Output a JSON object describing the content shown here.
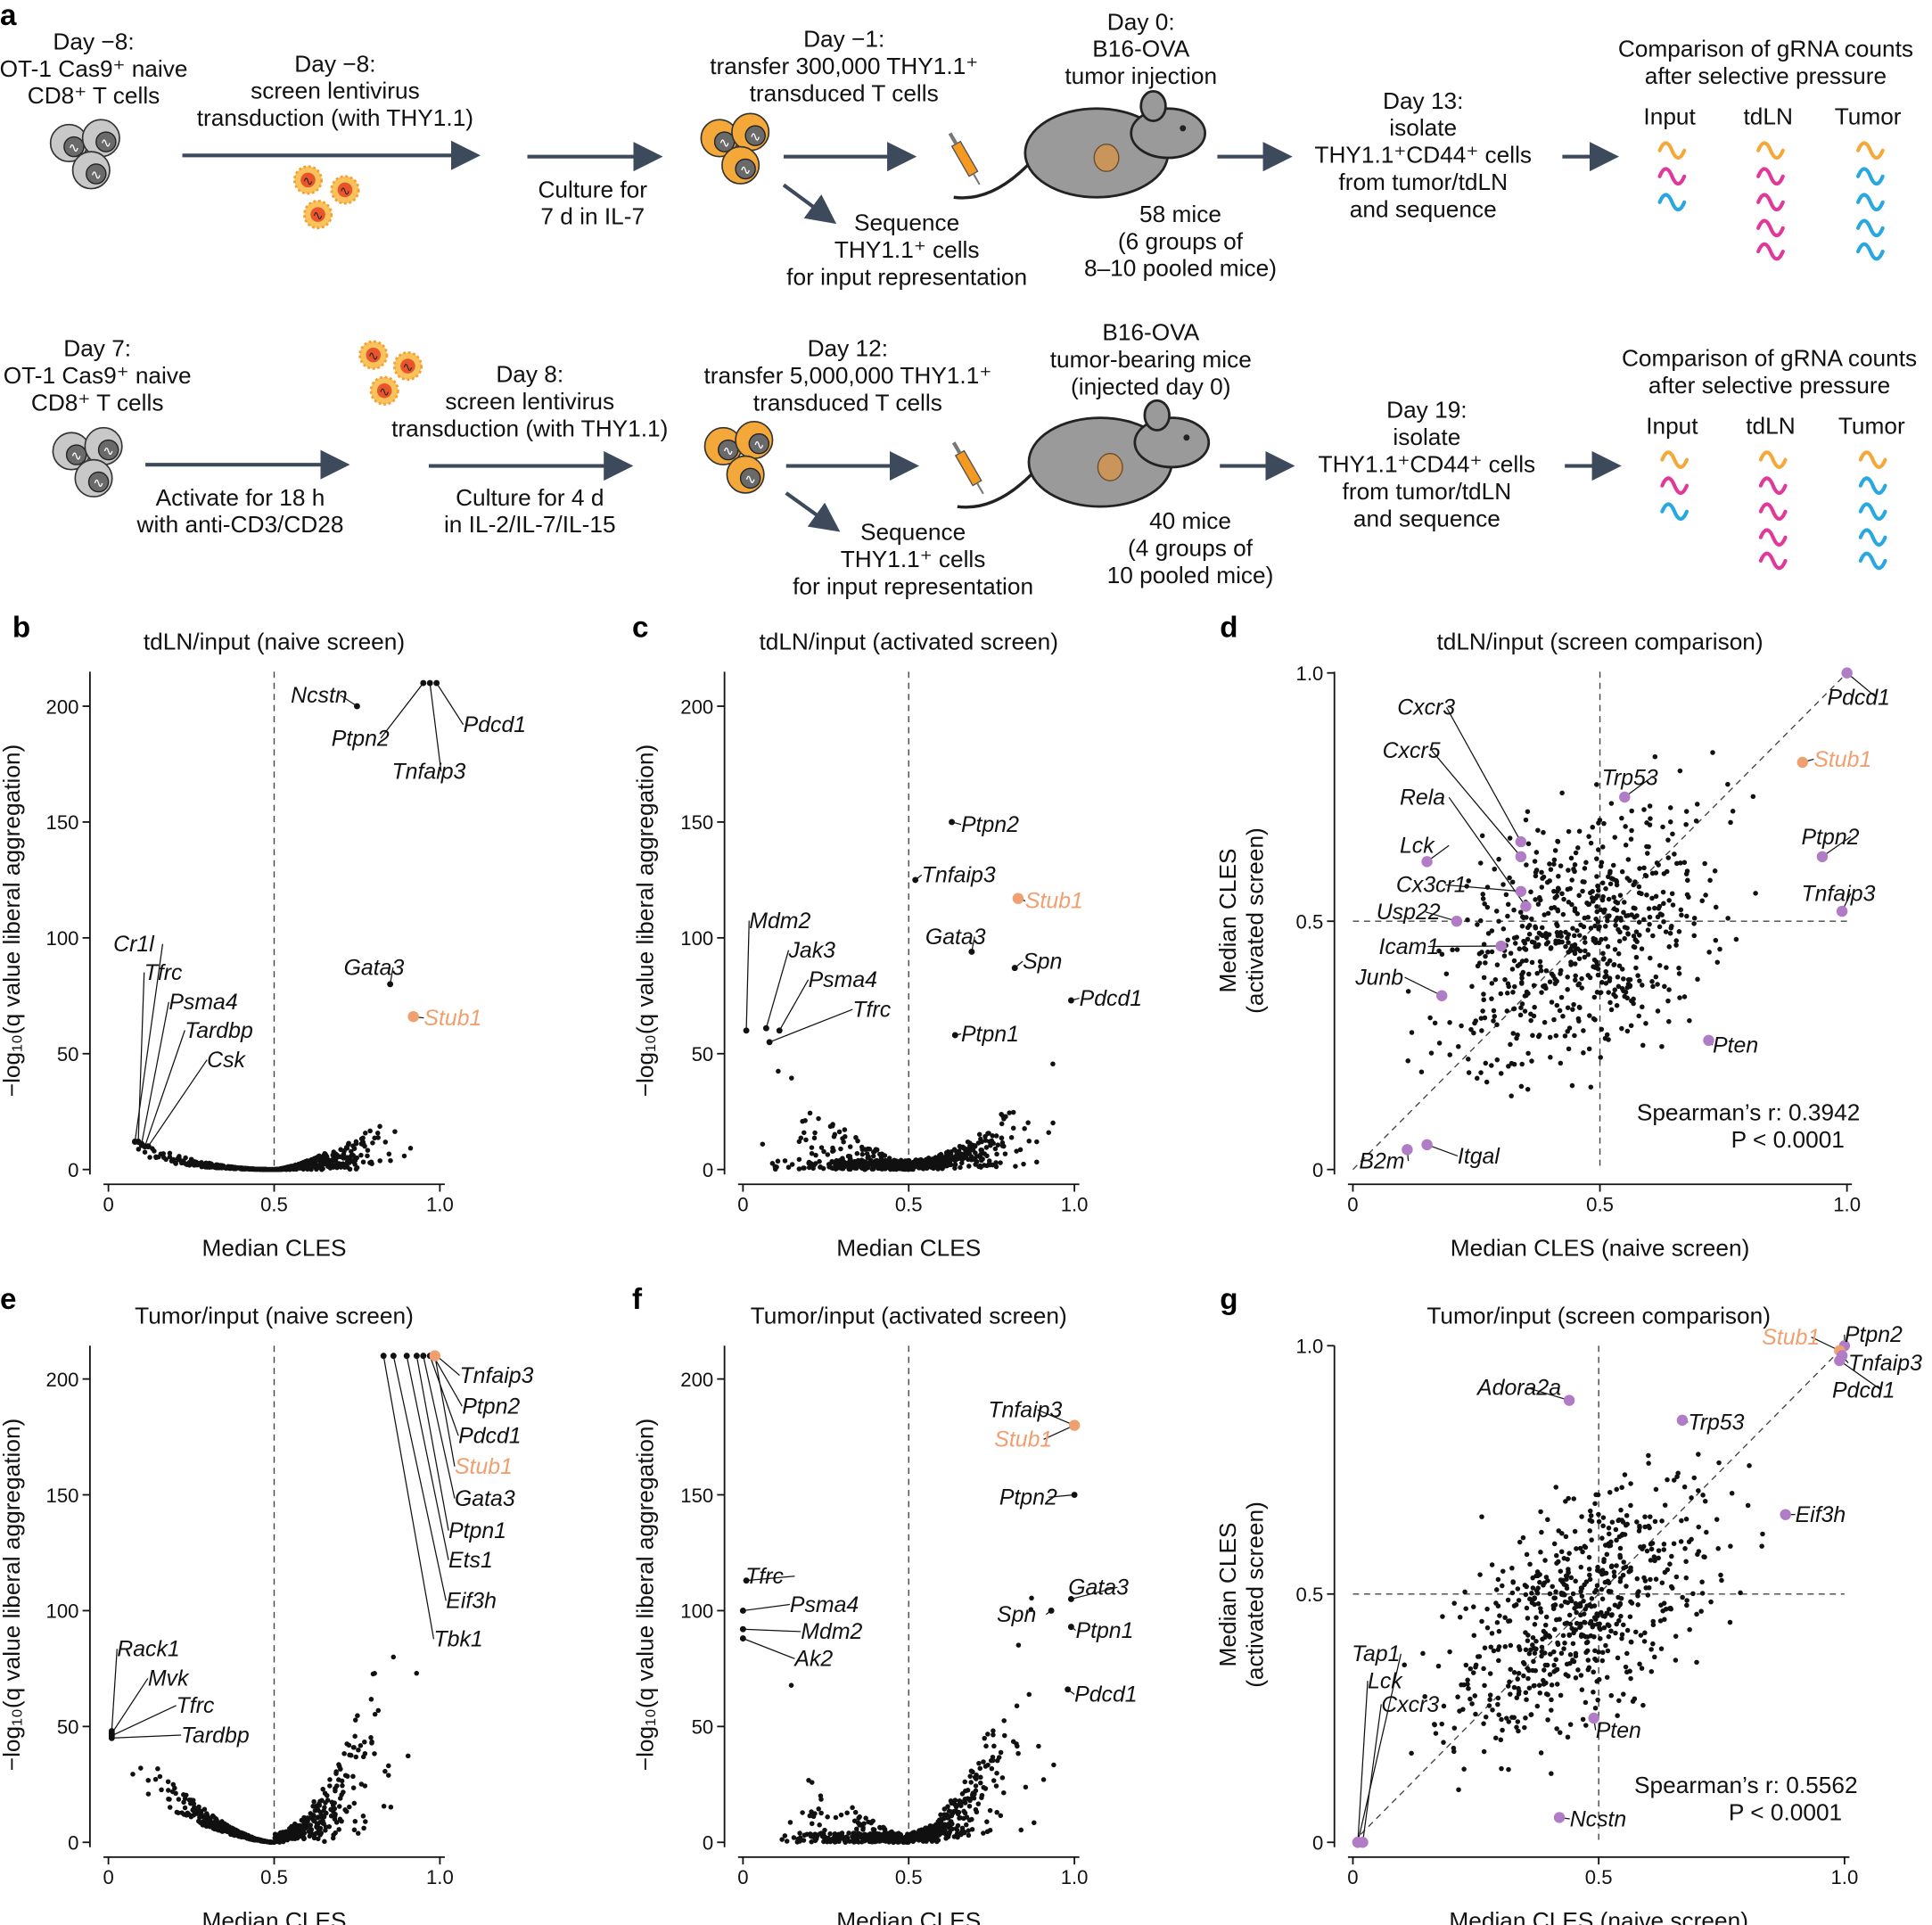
{
  "figure_label_a": "a",
  "row1": {
    "start": [
      "Day −8:",
      "OT-1 Cas9⁺ naive",
      "CD8⁺ T cells"
    ],
    "transduction": [
      "Day −8:",
      "screen lentivirus",
      "transduction (with THY1.1)"
    ],
    "culture": [
      "Culture for",
      "7 d in IL-7"
    ],
    "transfer": [
      "Day −1:",
      "transfer 300,000 THY1.1⁺",
      "transduced T cells"
    ],
    "sequence": [
      "Sequence",
      "THY1.1⁺ cells",
      "for input representation"
    ],
    "injection": [
      "Day 0:",
      "B16-OVA",
      "tumor injection"
    ],
    "mice": [
      "58 mice",
      "(6 groups of",
      "8–10 pooled mice)"
    ],
    "isolate": [
      "Day 13:",
      "isolate",
      "THY1.1⁺CD44⁺ cells",
      "from tumor/tdLN",
      "and sequence"
    ],
    "comparison": [
      "Comparison of gRNA counts",
      "after selective pressure"
    ],
    "columns": [
      "Input",
      "tdLN",
      "Tumor"
    ]
  },
  "row2": {
    "start": [
      "Day 7:",
      "OT-1 Cas9⁺ naive",
      "CD8⁺ T cells"
    ],
    "activate": [
      "Activate for 18 h",
      "with anti-CD3/CD28"
    ],
    "transduction": [
      "Day 8:",
      "screen lentivirus",
      "transduction (with THY1.1)"
    ],
    "culture": [
      "Culture for 4 d",
      "in IL-2/IL-7/IL-15"
    ],
    "transfer": [
      "Day 12:",
      "transfer 5,000,000 THY1.1⁺",
      "transduced T cells"
    ],
    "sequence": [
      "Sequence",
      "THY1.1⁺ cells",
      "for input representation"
    ],
    "injection": [
      "B16-OVA",
      "tumor-bearing mice",
      "(injected day 0)"
    ],
    "mice": [
      "40 mice",
      "(4 groups of",
      "10 pooled mice)"
    ],
    "isolate": [
      "Day 19:",
      "isolate",
      "THY1.1⁺CD44⁺ cells",
      "from tumor/tdLN",
      "and sequence"
    ],
    "comparison": [
      "Comparison of gRNA counts",
      "after selective pressure"
    ],
    "columns": [
      "Input",
      "tdLN",
      "Tumor"
    ]
  },
  "colors": {
    "highlight": "#f0a070",
    "purple": "#b07cc6",
    "orange_cell": "#f5a83a",
    "magenta": "#e0399a",
    "cyan": "#29a8e0",
    "arrow": "#3d4a5c"
  },
  "chart_data": [
    {
      "panel": "b",
      "type": "scatter",
      "title": "tdLN/input (naive screen)",
      "xlabel": "Median CLES",
      "ylabel": "−log₁₀(q value liberal aggregation)",
      "xlim": [
        0,
        1.0
      ],
      "ylim": [
        0,
        215
      ],
      "xticks": [
        "0",
        "0.5",
        "1.0"
      ],
      "yticks": [
        "0",
        "50",
        "100",
        "150",
        "200"
      ],
      "yticks_values": [
        0,
        50,
        100,
        150,
        200
      ],
      "xticks_values": [
        0,
        0.5,
        1.0
      ],
      "points": [
        {
          "gene": "Ncstn",
          "x": 0.75,
          "y": 200
        },
        {
          "gene": "Ptpn2",
          "x": 0.95,
          "y": 210
        },
        {
          "gene": "Tnfaip3",
          "x": 0.97,
          "y": 210
        },
        {
          "gene": "Pdcd1",
          "x": 0.99,
          "y": 210
        },
        {
          "gene": "Gata3",
          "x": 0.85,
          "y": 80
        },
        {
          "gene": "Stub1",
          "x": 0.92,
          "y": 66,
          "highlight": true
        },
        {
          "gene": "Cr1l",
          "x": 0.08,
          "y": 12
        },
        {
          "gene": "Tfrc",
          "x": 0.09,
          "y": 12
        },
        {
          "gene": "Psma4",
          "x": 0.1,
          "y": 11
        },
        {
          "gene": "Tardbp",
          "x": 0.11,
          "y": 10
        },
        {
          "gene": "Csk",
          "x": 0.12,
          "y": 10
        }
      ]
    },
    {
      "panel": "c",
      "type": "scatter",
      "title": "tdLN/input (activated screen)",
      "xlabel": "Median CLES",
      "ylabel": "−log₁₀(q value liberal aggregation)",
      "xlim": [
        0,
        1.0
      ],
      "ylim": [
        0,
        215
      ],
      "xticks": [
        "0",
        "0.5",
        "1.0"
      ],
      "yticks": [
        "0",
        "50",
        "100",
        "150",
        "200"
      ],
      "yticks_values": [
        0,
        50,
        100,
        150,
        200
      ],
      "xticks_values": [
        0,
        0.5,
        1.0
      ],
      "points": [
        {
          "gene": "Ptpn2",
          "x": 0.63,
          "y": 150
        },
        {
          "gene": "Tnfaip3",
          "x": 0.52,
          "y": 125
        },
        {
          "gene": "Stub1",
          "x": 0.83,
          "y": 117,
          "highlight": true
        },
        {
          "gene": "Gata3",
          "x": 0.69,
          "y": 94
        },
        {
          "gene": "Spn",
          "x": 0.82,
          "y": 87
        },
        {
          "gene": "Pdcd1",
          "x": 0.99,
          "y": 73
        },
        {
          "gene": "Ptpn1",
          "x": 0.64,
          "y": 58
        },
        {
          "gene": "Mdm2",
          "x": 0.01,
          "y": 60
        },
        {
          "gene": "Jak3",
          "x": 0.07,
          "y": 61
        },
        {
          "gene": "Psma4",
          "x": 0.11,
          "y": 60
        },
        {
          "gene": "Tfrc",
          "x": 0.08,
          "y": 55
        }
      ]
    },
    {
      "panel": "d",
      "type": "scatter",
      "title": "tdLN/input (screen comparison)",
      "xlabel": "Median CLES (naive screen)",
      "ylabel": [
        "Median CLES",
        "(activated screen)"
      ],
      "xlim": [
        0,
        1.0
      ],
      "ylim": [
        0,
        1.0
      ],
      "xticks": [
        "0",
        "0.5",
        "1.0"
      ],
      "yticks": [
        "0",
        "0.5",
        "1.0"
      ],
      "yticks_values": [
        0,
        0.5,
        1.0
      ],
      "xticks_values": [
        0,
        0.5,
        1.0
      ],
      "stats": [
        "Spearman’s r:  0.3942",
        "P < 0.0001"
      ],
      "points": [
        {
          "gene": "Pdcd1",
          "x": 1.0,
          "y": 1.0
        },
        {
          "gene": "Stub1",
          "x": 0.91,
          "y": 0.82,
          "highlight": true
        },
        {
          "gene": "Ptpn2",
          "x": 0.95,
          "y": 0.63
        },
        {
          "gene": "Tnfaip3",
          "x": 0.99,
          "y": 0.52
        },
        {
          "gene": "Trp53",
          "x": 0.55,
          "y": 0.75
        },
        {
          "gene": "Cxcr3",
          "x": 0.34,
          "y": 0.66
        },
        {
          "gene": "Cxcr5",
          "x": 0.34,
          "y": 0.63
        },
        {
          "gene": "Rela",
          "x": 0.35,
          "y": 0.53
        },
        {
          "gene": "Lck",
          "x": 0.15,
          "y": 0.62
        },
        {
          "gene": "Cx3cr1",
          "x": 0.34,
          "y": 0.56
        },
        {
          "gene": "Usp22",
          "x": 0.21,
          "y": 0.5
        },
        {
          "gene": "Icam1",
          "x": 0.3,
          "y": 0.45
        },
        {
          "gene": "Junb",
          "x": 0.18,
          "y": 0.35
        },
        {
          "gene": "Pten",
          "x": 0.72,
          "y": 0.26
        },
        {
          "gene": "B2m",
          "x": 0.11,
          "y": 0.04
        },
        {
          "gene": "Itgal",
          "x": 0.15,
          "y": 0.05
        }
      ]
    },
    {
      "panel": "e",
      "type": "scatter",
      "title": "Tumor/input (naive screen)",
      "xlabel": "Median CLES",
      "ylabel": "−log₁₀(q value liberal aggregation)",
      "xlim": [
        0,
        1.0
      ],
      "ylim": [
        0,
        215
      ],
      "xticks": [
        "0",
        "0.5",
        "1.0"
      ],
      "yticks": [
        "0",
        "50",
        "100",
        "150",
        "200"
      ],
      "yticks_values": [
        0,
        50,
        100,
        150,
        200
      ],
      "xticks_values": [
        0,
        0.5,
        1.0
      ],
      "points": [
        {
          "gene": "Tnfaip3",
          "x": 0.99,
          "y": 210
        },
        {
          "gene": "Ptpn2",
          "x": 0.98,
          "y": 210
        },
        {
          "gene": "Pdcd1",
          "x": 0.97,
          "y": 210
        },
        {
          "gene": "Stub1",
          "x": 0.985,
          "y": 210,
          "highlight": true
        },
        {
          "gene": "Gata3",
          "x": 0.95,
          "y": 210
        },
        {
          "gene": "Ptpn1",
          "x": 0.93,
          "y": 210
        },
        {
          "gene": "Ets1",
          "x": 0.9,
          "y": 210
        },
        {
          "gene": "Eif3h",
          "x": 0.86,
          "y": 210
        },
        {
          "gene": "Tbk1",
          "x": 0.83,
          "y": 210
        },
        {
          "gene": "Rack1",
          "x": 0.01,
          "y": 48
        },
        {
          "gene": "Mvk",
          "x": 0.01,
          "y": 47
        },
        {
          "gene": "Tfrc",
          "x": 0.01,
          "y": 46
        },
        {
          "gene": "Tardbp",
          "x": 0.01,
          "y": 45
        }
      ]
    },
    {
      "panel": "f",
      "type": "scatter",
      "title": "Tumor/input (activated screen)",
      "xlabel": "Median CLES",
      "ylabel": "−log₁₀(q value liberal aggregation)",
      "xlim": [
        0,
        1.0
      ],
      "ylim": [
        0,
        215
      ],
      "xticks": [
        "0",
        "0.5",
        "1.0"
      ],
      "yticks": [
        "0",
        "50",
        "100",
        "150",
        "200"
      ],
      "yticks_values": [
        0,
        50,
        100,
        150,
        200
      ],
      "xticks_values": [
        0,
        0.5,
        1.0
      ],
      "points": [
        {
          "gene": "Tnfaip3",
          "x": 1.0,
          "y": 180
        },
        {
          "gene": "Stub1",
          "x": 1.0,
          "y": 180,
          "highlight": true
        },
        {
          "gene": "Ptpn2",
          "x": 1.0,
          "y": 150
        },
        {
          "gene": "Gata3",
          "x": 0.99,
          "y": 105
        },
        {
          "gene": "Spn",
          "x": 0.93,
          "y": 100
        },
        {
          "gene": "Ptpn1",
          "x": 0.99,
          "y": 93
        },
        {
          "gene": "Pdcd1",
          "x": 0.98,
          "y": 66
        },
        {
          "gene": "Tfrc",
          "x": 0.01,
          "y": 113
        },
        {
          "gene": "Psma4",
          "x": 0.0,
          "y": 100
        },
        {
          "gene": "Mdm2",
          "x": 0.0,
          "y": 92
        },
        {
          "gene": "Ak2",
          "x": 0.0,
          "y": 88
        }
      ]
    },
    {
      "panel": "g",
      "type": "scatter",
      "title": "Tumor/input (screen comparison)",
      "xlabel": "Median CLES (naive screen)",
      "ylabel": [
        "Median CLES",
        "(activated screen)"
      ],
      "xlim": [
        0,
        1.0
      ],
      "ylim": [
        0,
        1.0
      ],
      "xticks": [
        "0",
        "0.5",
        "1.0"
      ],
      "yticks": [
        "0",
        "0.5",
        "1.0"
      ],
      "yticks_values": [
        0,
        0.5,
        1.0
      ],
      "xticks_values": [
        0,
        0.5,
        1.0
      ],
      "stats": [
        "Spearman’s r:  0.5562",
        "P < 0.0001"
      ],
      "points": [
        {
          "gene": "Ptpn2",
          "x": 1.0,
          "y": 1.0
        },
        {
          "gene": "Stub1",
          "x": 0.99,
          "y": 0.99,
          "highlight": true
        },
        {
          "gene": "Tnfaip3",
          "x": 0.995,
          "y": 0.98
        },
        {
          "gene": "Pdcd1",
          "x": 0.99,
          "y": 0.97
        },
        {
          "gene": "Adora2a",
          "x": 0.44,
          "y": 0.89
        },
        {
          "gene": "Trp53",
          "x": 0.67,
          "y": 0.85
        },
        {
          "gene": "Eif3h",
          "x": 0.88,
          "y": 0.66
        },
        {
          "gene": "Pten",
          "x": 0.49,
          "y": 0.25
        },
        {
          "gene": "Ncstn",
          "x": 0.42,
          "y": 0.05
        },
        {
          "gene": "Tap1",
          "x": 0.01,
          "y": 0.0
        },
        {
          "gene": "Lck",
          "x": 0.01,
          "y": 0.0
        },
        {
          "gene": "Cxcr3",
          "x": 0.02,
          "y": 0.0
        }
      ]
    }
  ]
}
